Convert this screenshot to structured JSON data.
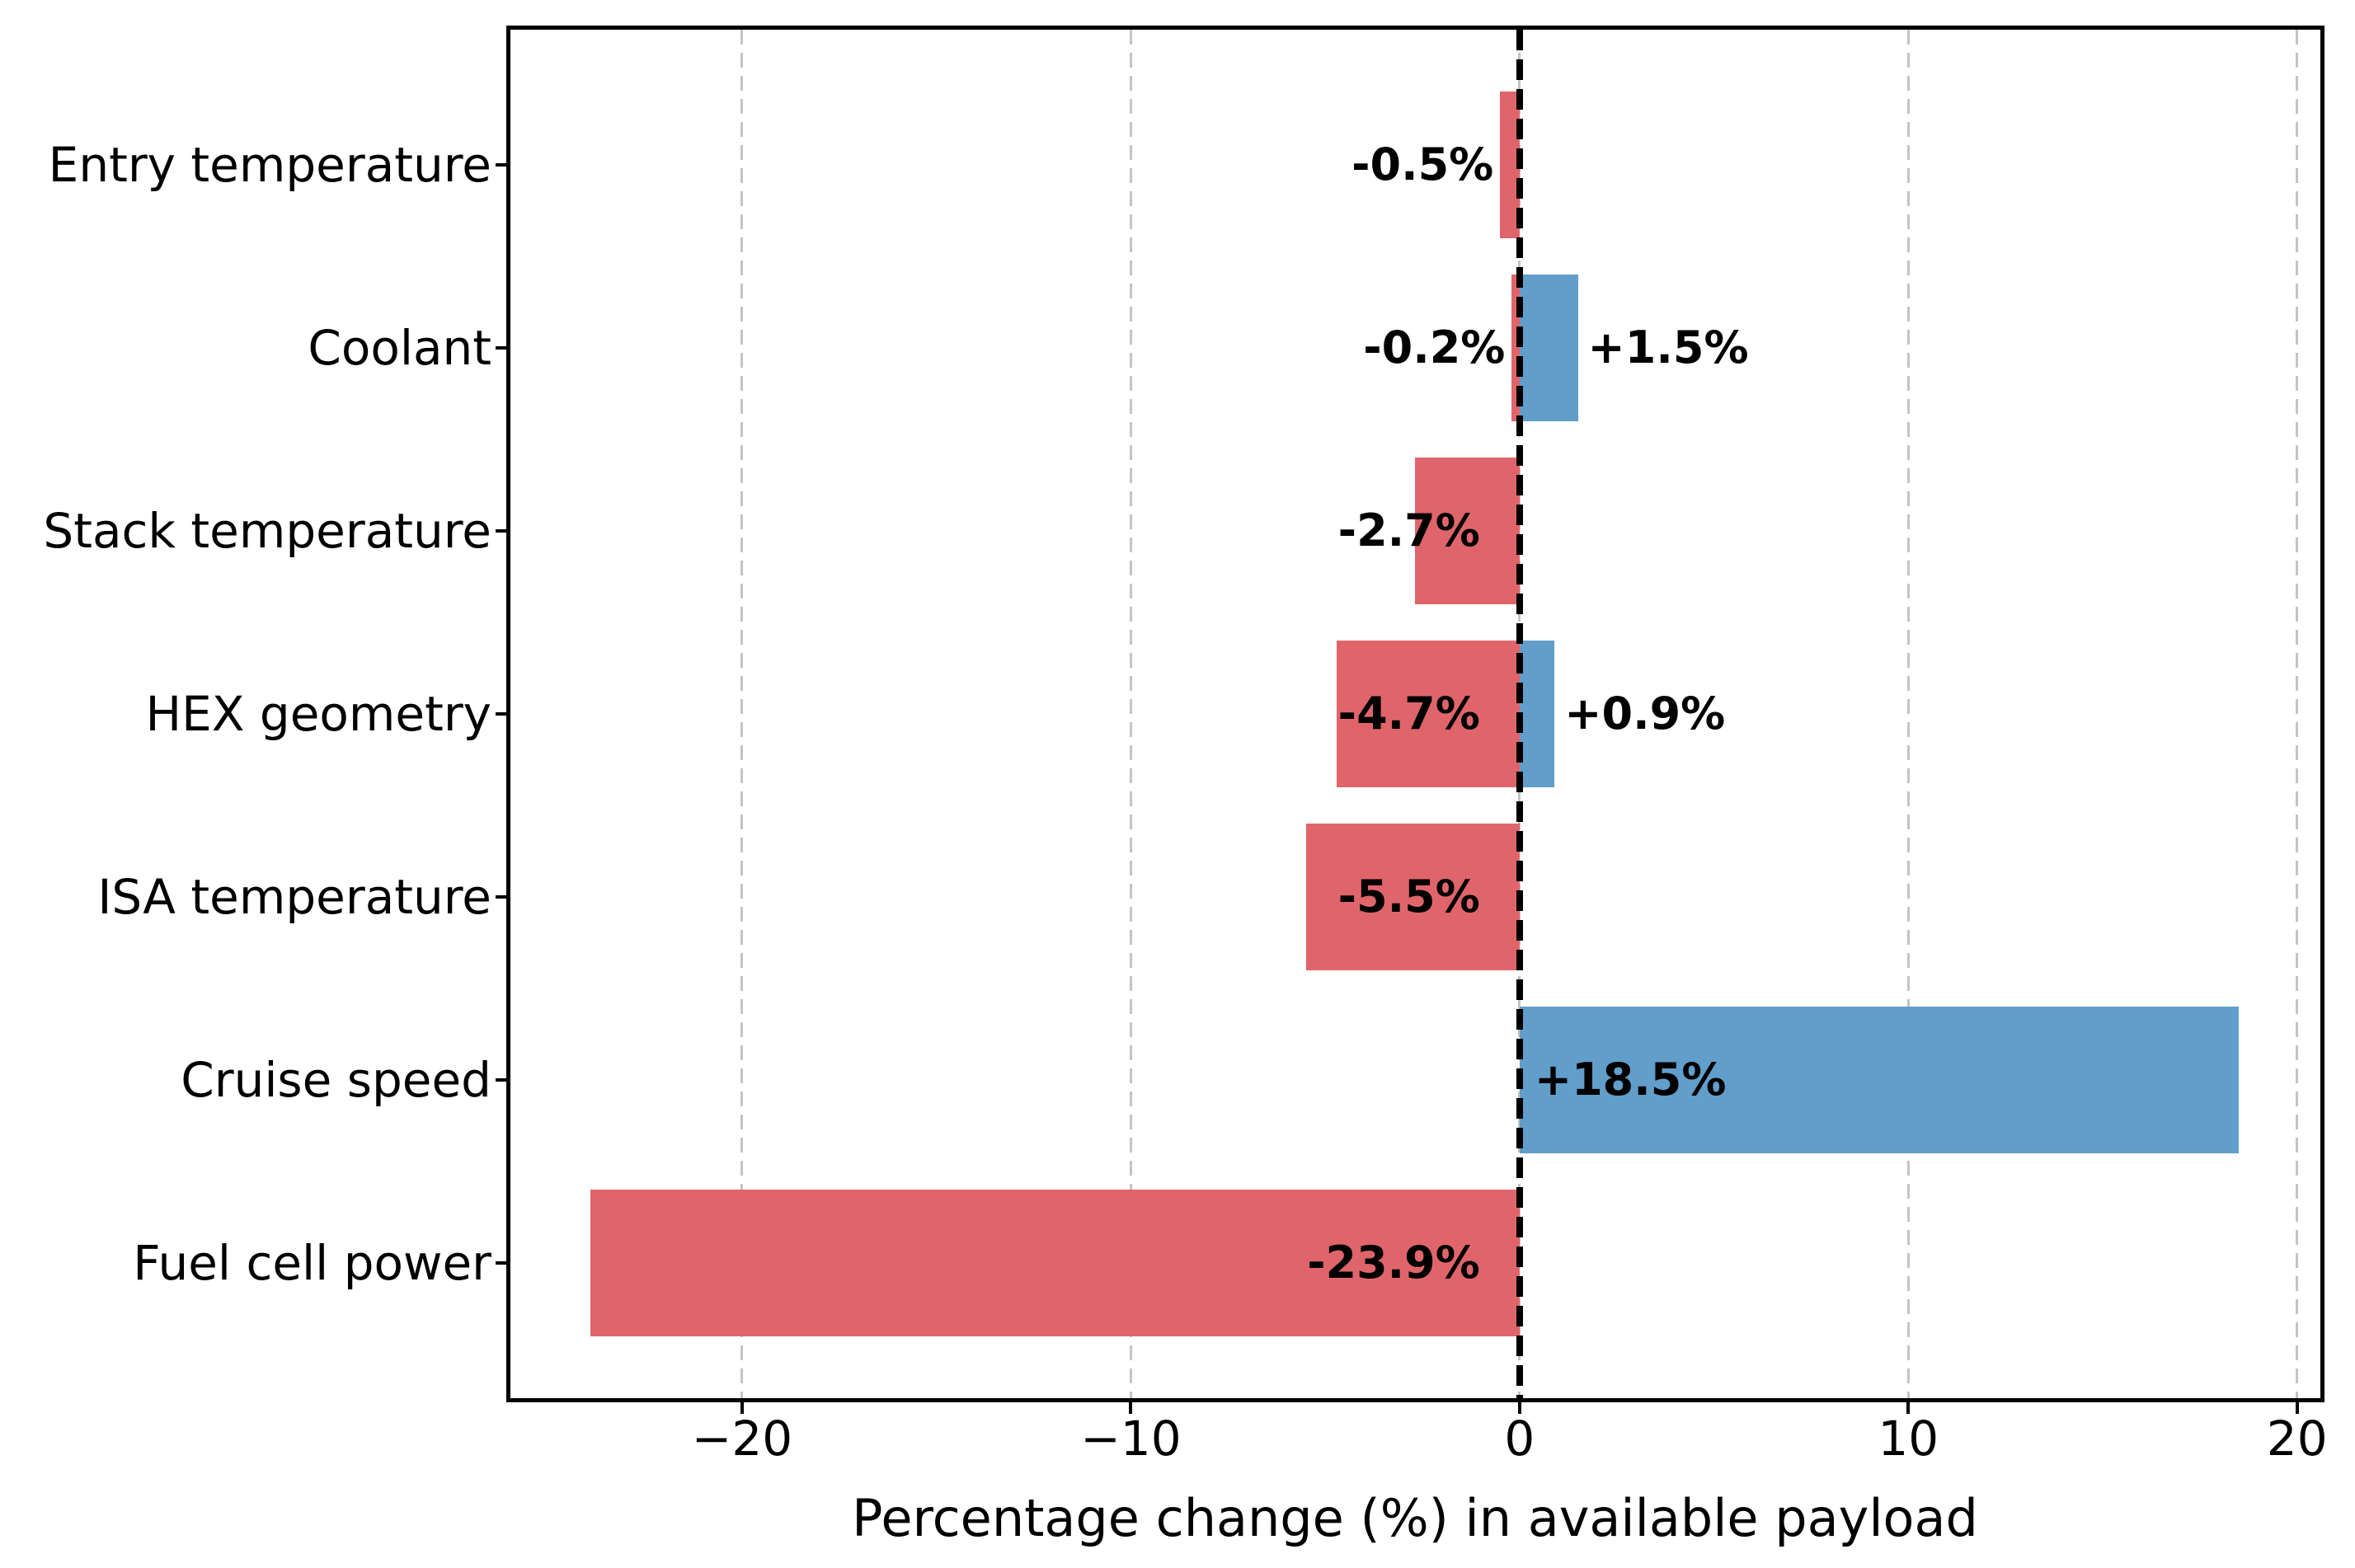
{
  "chart_data": {
    "type": "bar",
    "orientation": "horizontal",
    "title": "",
    "xlabel": "Percentage change (%) in available payload",
    "xlim": [
      -25.96,
      20.6
    ],
    "x_ticks": [
      {
        "value": -20,
        "label": "−20"
      },
      {
        "value": -10,
        "label": "−10"
      },
      {
        "value": 0,
        "label": "0"
      },
      {
        "value": 10,
        "label": "10"
      },
      {
        "value": 20,
        "label": "20"
      }
    ],
    "grid": {
      "show": true,
      "axis": "x",
      "style": "dashed",
      "color": "#c4c4c4"
    },
    "zero_line": {
      "show": true,
      "style": "dashed",
      "color": "#000000"
    },
    "colors": {
      "negative": "#e0656b",
      "positive": "#619eca"
    },
    "bar_height_fraction": 0.8,
    "categories": [
      "Entry temperature",
      "Coolant",
      "Stack temperature",
      "HEX geometry",
      "ISA temperature",
      "Cruise speed",
      "Fuel cell power"
    ],
    "rows": [
      {
        "category": "Entry temperature",
        "bars": [
          {
            "value": -0.5,
            "label": "-0.5%",
            "direction": "negative"
          }
        ]
      },
      {
        "category": "Coolant",
        "bars": [
          {
            "value": -0.2,
            "label": "-0.2%",
            "direction": "negative"
          },
          {
            "value": 1.5,
            "label": "+1.5%",
            "direction": "positive"
          }
        ]
      },
      {
        "category": "Stack temperature",
        "bars": [
          {
            "value": -2.7,
            "label": "-2.7%",
            "direction": "negative"
          }
        ]
      },
      {
        "category": "HEX geometry",
        "bars": [
          {
            "value": -4.7,
            "label": "-4.7%",
            "direction": "negative"
          },
          {
            "value": 0.9,
            "label": "+0.9%",
            "direction": "positive"
          }
        ]
      },
      {
        "category": "ISA temperature",
        "bars": [
          {
            "value": -5.5,
            "label": "-5.5%",
            "direction": "negative"
          }
        ]
      },
      {
        "category": "Cruise speed",
        "bars": [
          {
            "value": 18.5,
            "label": "+18.5%",
            "direction": "positive"
          }
        ]
      },
      {
        "category": "Fuel cell power",
        "bars": [
          {
            "value": -23.9,
            "label": "-23.9%",
            "direction": "negative"
          }
        ]
      }
    ]
  }
}
